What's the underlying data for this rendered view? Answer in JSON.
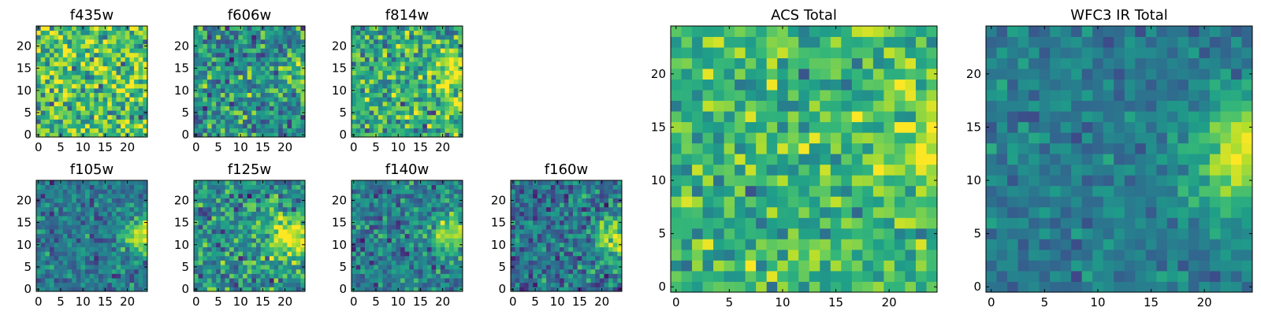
{
  "chart_data": [
    {
      "type": "heatmap",
      "title": "f435w",
      "xlim": [
        0,
        25
      ],
      "ylim": [
        0,
        25
      ],
      "xticks": [
        "0",
        "5",
        "10",
        "15",
        "20"
      ],
      "yticks": [
        "0",
        "5",
        "10",
        "15",
        "20"
      ],
      "colormap": "viridis",
      "gradient": {
        "x0": 25,
        "y0": 12,
        "sigma": 4,
        "strength": 0.05
      },
      "base": 0.72,
      "contrast": 0.24,
      "seed": 11
    },
    {
      "type": "heatmap",
      "title": "f606w",
      "xlim": [
        0,
        25
      ],
      "ylim": [
        0,
        25
      ],
      "xticks": [
        "0",
        "5",
        "10",
        "15",
        "20"
      ],
      "yticks": [
        "0",
        "5",
        "10",
        "15",
        "20"
      ],
      "colormap": "viridis",
      "gradient": {
        "x0": 25,
        "y0": 15,
        "sigma": 3.5,
        "strength": 0.3
      },
      "base": 0.5,
      "contrast": 0.22,
      "seed": 23
    },
    {
      "type": "heatmap",
      "title": "f814w",
      "xlim": [
        0,
        25
      ],
      "ylim": [
        0,
        25
      ],
      "xticks": [
        "0",
        "5",
        "10",
        "15",
        "20"
      ],
      "yticks": [
        "0",
        "5",
        "10",
        "15",
        "20"
      ],
      "colormap": "viridis",
      "gradient": {
        "x0": 24,
        "y0": 14,
        "sigma": 4,
        "strength": 0.3
      },
      "base": 0.62,
      "contrast": 0.22,
      "seed": 37
    },
    {
      "type": "heatmap",
      "title": "f105w",
      "xlim": [
        0,
        25
      ],
      "ylim": [
        0,
        25
      ],
      "xticks": [
        "0",
        "5",
        "10",
        "15",
        "20"
      ],
      "yticks": [
        "0",
        "5",
        "10",
        "15",
        "20"
      ],
      "colormap": "viridis",
      "gradient": {
        "x0": 24.5,
        "y0": 13,
        "sigma": 3,
        "strength": 0.55
      },
      "base": 0.4,
      "contrast": 0.15,
      "seed": 41
    },
    {
      "type": "heatmap",
      "title": "f125w",
      "xlim": [
        0,
        25
      ],
      "ylim": [
        0,
        25
      ],
      "xticks": [
        "0",
        "5",
        "10",
        "15",
        "20"
      ],
      "yticks": [
        "0",
        "5",
        "10",
        "15",
        "20"
      ],
      "colormap": "viridis",
      "gradient": {
        "x0": 22,
        "y0": 12,
        "sigma": 4,
        "strength": 0.45
      },
      "base": 0.5,
      "contrast": 0.2,
      "seed": 53
    },
    {
      "type": "heatmap",
      "title": "f140w",
      "xlim": [
        0,
        25
      ],
      "ylim": [
        0,
        25
      ],
      "xticks": [
        "0",
        "5",
        "10",
        "15",
        "20"
      ],
      "yticks": [
        "0",
        "5",
        "10",
        "15",
        "20"
      ],
      "colormap": "viridis",
      "gradient": {
        "x0": 23,
        "y0": 13,
        "sigma": 3.5,
        "strength": 0.45
      },
      "base": 0.42,
      "contrast": 0.17,
      "seed": 67
    },
    {
      "type": "heatmap",
      "title": "f160w",
      "xlim": [
        0,
        25
      ],
      "ylim": [
        0,
        25
      ],
      "xticks": [
        "0",
        "5",
        "10",
        "15",
        "20"
      ],
      "yticks": [
        "0",
        "5",
        "10",
        "15",
        "20"
      ],
      "colormap": "viridis",
      "gradient": {
        "x0": 24,
        "y0": 12,
        "sigma": 3.5,
        "strength": 0.55
      },
      "base": 0.38,
      "contrast": 0.18,
      "seed": 79
    },
    {
      "type": "heatmap",
      "title": "ACS Total",
      "xlim": [
        0,
        25
      ],
      "ylim": [
        0,
        25
      ],
      "xticks": [
        "0",
        "5",
        "10",
        "15",
        "20"
      ],
      "yticks": [
        "0",
        "5",
        "10",
        "15",
        "20"
      ],
      "colormap": "viridis",
      "gradient": {
        "x0": 25,
        "y0": 14,
        "sigma": 3.5,
        "strength": 0.3
      },
      "base": 0.66,
      "contrast": 0.17,
      "seed": 97
    },
    {
      "type": "heatmap",
      "title": "WFC3 IR Total",
      "xlim": [
        0,
        25
      ],
      "ylim": [
        0,
        25
      ],
      "xticks": [
        "0",
        "5",
        "10",
        "15",
        "20"
      ],
      "yticks": [
        "0",
        "5",
        "10",
        "15",
        "20"
      ],
      "colormap": "viridis",
      "gradient": {
        "x0": 24.5,
        "y0": 13,
        "sigma": 3.5,
        "strength": 0.55
      },
      "base": 0.42,
      "contrast": 0.1,
      "seed": 131
    }
  ]
}
